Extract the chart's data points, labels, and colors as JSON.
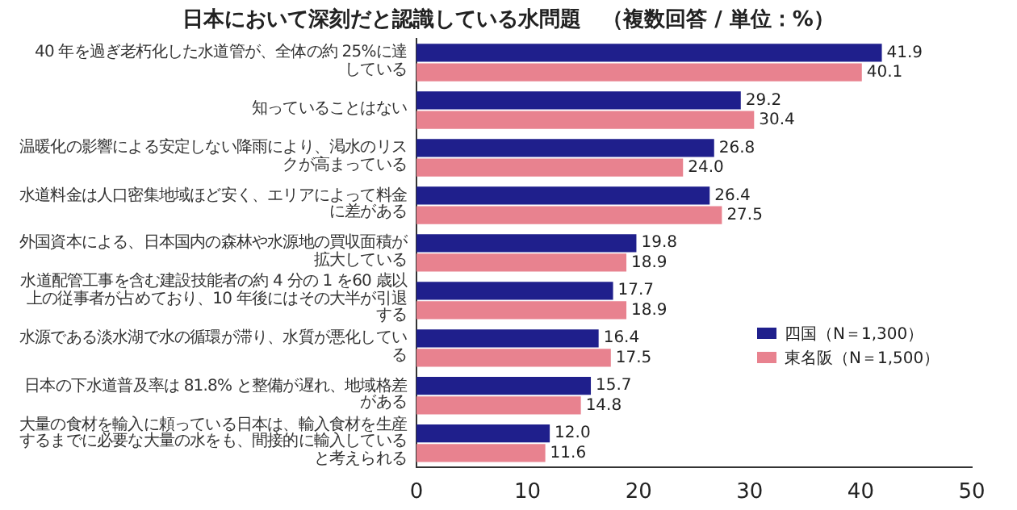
{
  "chart_data": {
    "type": "bar",
    "orientation": "horizontal",
    "title": "日本において深刻だと認識している水問題　（複数回答 / 単位：%）",
    "categories": [
      "40 年を過ぎ老朽化した水道管が、全体の約 25%に達している",
      "知っていることはない",
      "温暖化の影響による安定しない降雨により、渇水のリスクが高まっている",
      "水道料金は人口密集地域ほど安く、エリアによって料金に差がある",
      "外国資本による、日本国内の森林や水源地の買収面積が拡大している",
      "水道配管工事を含む建設技能者の約 4 分の 1 を60 歳以上の従事者が占めており、10 年後にはその大半が引退する",
      "水源である淡水湖で水の循環が滞り、水質が悪化している",
      "日本の下水道普及率は 81.8% と整備が遅れ、地域格差がある",
      "大量の食材を輸入に頼っている日本は、輸入食材を生産するまでに必要な大量の水をも、間接的に輸入していると考えられる"
    ],
    "series": [
      {
        "name": "四国（N＝1,300）",
        "color": "#1f1f8c",
        "values": [
          41.9,
          29.2,
          26.8,
          26.4,
          19.8,
          17.7,
          16.4,
          15.7,
          12.0
        ]
      },
      {
        "name": "東名阪（N＝1,500）",
        "color": "#e8828f",
        "values": [
          40.1,
          30.4,
          24.0,
          27.5,
          18.9,
          18.9,
          17.5,
          14.8,
          11.6
        ]
      }
    ],
    "value_labels": [
      [
        "41.9",
        "29.2",
        "26.8",
        "26.4",
        "19.8",
        "17.7",
        "16.4",
        "15.7",
        "12.0"
      ],
      [
        "40.1",
        "30.4",
        "24.0",
        "27.5",
        "18.9",
        "18.9",
        "17.5",
        "14.8",
        "11.6"
      ]
    ],
    "xlim": [
      0,
      50
    ],
    "xticks": [
      0,
      10,
      20,
      30,
      40,
      50
    ],
    "grid": false,
    "legend": "bottom right"
  }
}
